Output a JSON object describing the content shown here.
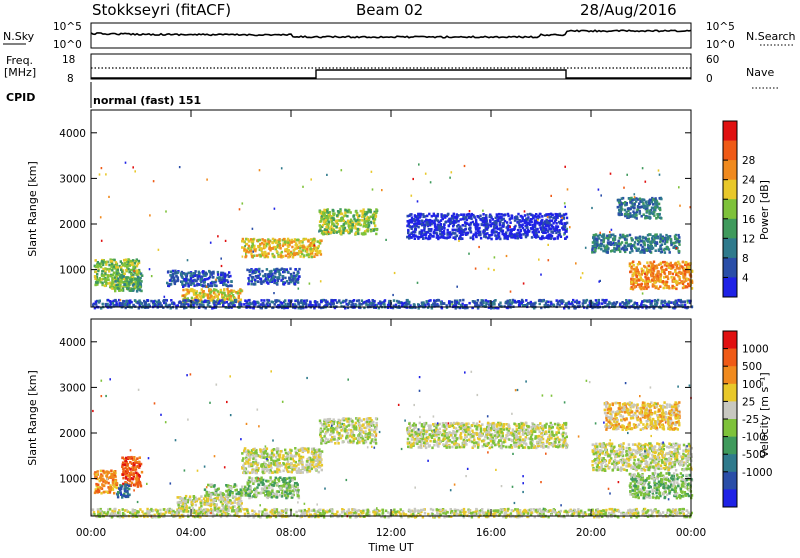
{
  "header": {
    "station": "Stokkseyri (fitACF)",
    "beam": "Beam 02",
    "date": "28/Aug/2016"
  },
  "noise_panel": {
    "left_label": "N.Sky",
    "right_label": "N.Search",
    "left_ticks": [
      "10^5",
      "10^0"
    ],
    "right_ticks": [
      "10^5",
      "10^0"
    ]
  },
  "freq_panel": {
    "left_label_1": "Freq.",
    "left_label_2": "[MHz]",
    "left_ticks": [
      "18",
      "8"
    ],
    "right_label": "Nave",
    "right_ticks": [
      "60",
      "0"
    ]
  },
  "cpid_panel": {
    "label": "CPID",
    "text": "normal (fast) 151"
  },
  "axes": {
    "ylabel": "Slant Range [km]",
    "yticks": [
      "1000",
      "2000",
      "3000",
      "4000"
    ],
    "xticks": [
      "00:00",
      "04:00",
      "08:00",
      "12:00",
      "16:00",
      "20:00",
      "00:00"
    ],
    "xlabel": "Time UT"
  },
  "colorbars": {
    "power": {
      "label": "Power [dB]",
      "ticks": [
        "4",
        "8",
        "12",
        "16",
        "20",
        "24",
        "28"
      ],
      "colors": [
        "#1f22e6",
        "#2a4ea8",
        "#2f7a8c",
        "#3f9a5c",
        "#7ec23a",
        "#e8c82a",
        "#f08a1e",
        "#ef5a16",
        "#e01010"
      ]
    },
    "velocity": {
      "label": "Velocity [m s⁻¹]",
      "ticks": [
        "1000",
        "500",
        "100",
        "25",
        "-25",
        "-100",
        "-500",
        "-1000"
      ],
      "colors": [
        "#1f22e6",
        "#2a4ea8",
        "#2f7a8c",
        "#3f9a5c",
        "#7ec23a",
        "#c8c8c0",
        "#e8c82a",
        "#f08a1e",
        "#ef5a16",
        "#e01010"
      ]
    }
  },
  "chart_data": {
    "type": "heatmap",
    "x_range_hours": [
      0,
      24
    ],
    "y_range_km": [
      180,
      4500
    ],
    "x": [
      "00:00",
      "04:00",
      "08:00",
      "12:00",
      "16:00",
      "20:00",
      "00:00"
    ],
    "freq_step_hours": [
      9.0,
      19.0
    ],
    "power_regions": [
      {
        "t0": 0.1,
        "t1": 1.9,
        "r0": 600,
        "r1": 1250,
        "level": 4
      },
      {
        "t0": 0.9,
        "t1": 2.0,
        "r0": 550,
        "r1": 950,
        "level": 3
      },
      {
        "t0": 3.6,
        "t1": 6.0,
        "r0": 300,
        "r1": 600,
        "level": 5
      },
      {
        "t0": 3.0,
        "t1": 5.6,
        "r0": 650,
        "r1": 1000,
        "level": 1
      },
      {
        "t0": 6.0,
        "t1": 9.2,
        "r0": 1300,
        "r1": 1700,
        "level": 5
      },
      {
        "t0": 9.1,
        "t1": 11.4,
        "r0": 1800,
        "r1": 2350,
        "level": 4
      },
      {
        "t0": 6.2,
        "t1": 8.3,
        "r0": 700,
        "r1": 1050,
        "level": 1
      },
      {
        "t0": 12.6,
        "t1": 19.0,
        "r0": 1700,
        "r1": 2250,
        "level": 0
      },
      {
        "t0": 20.0,
        "t1": 23.5,
        "r0": 1400,
        "r1": 1800,
        "level": 2
      },
      {
        "t0": 21.5,
        "t1": 24.0,
        "r0": 600,
        "r1": 1200,
        "level": 6
      },
      {
        "t0": 21.0,
        "t1": 22.8,
        "r0": 2150,
        "r1": 2600,
        "level": 2
      },
      {
        "t0": 0.0,
        "t1": 24.0,
        "r0": 180,
        "r1": 360,
        "level": 1
      }
    ],
    "velocity_regions": [
      {
        "t0": 0.1,
        "t1": 1.0,
        "r0": 700,
        "r1": 1200,
        "level": 7
      },
      {
        "t0": 1.2,
        "t1": 2.0,
        "r0": 850,
        "r1": 1500,
        "level": 8
      },
      {
        "t0": 1.0,
        "t1": 1.5,
        "r0": 600,
        "r1": 900,
        "level": 2
      },
      {
        "t0": 3.4,
        "t1": 6.0,
        "r0": 300,
        "r1": 650,
        "level": 5
      },
      {
        "t0": 4.5,
        "t1": 6.2,
        "r0": 650,
        "r1": 900,
        "level": 4
      },
      {
        "t0": 6.0,
        "t1": 9.2,
        "r0": 1150,
        "r1": 1700,
        "level": 5
      },
      {
        "t0": 6.2,
        "t1": 8.3,
        "r0": 600,
        "r1": 1050,
        "level": 4
      },
      {
        "t0": 9.1,
        "t1": 11.4,
        "r0": 1800,
        "r1": 2350,
        "level": 5
      },
      {
        "t0": 12.6,
        "t1": 19.0,
        "r0": 1700,
        "r1": 2250,
        "level": 5
      },
      {
        "t0": 20.0,
        "t1": 24.0,
        "r0": 1200,
        "r1": 1800,
        "level": 5
      },
      {
        "t0": 21.5,
        "t1": 24.0,
        "r0": 600,
        "r1": 1150,
        "level": 4
      },
      {
        "t0": 20.5,
        "t1": 23.5,
        "r0": 2100,
        "r1": 2700,
        "level": 6
      },
      {
        "t0": 0.0,
        "t1": 24.0,
        "r0": 180,
        "r1": 360,
        "level": 5
      }
    ]
  }
}
